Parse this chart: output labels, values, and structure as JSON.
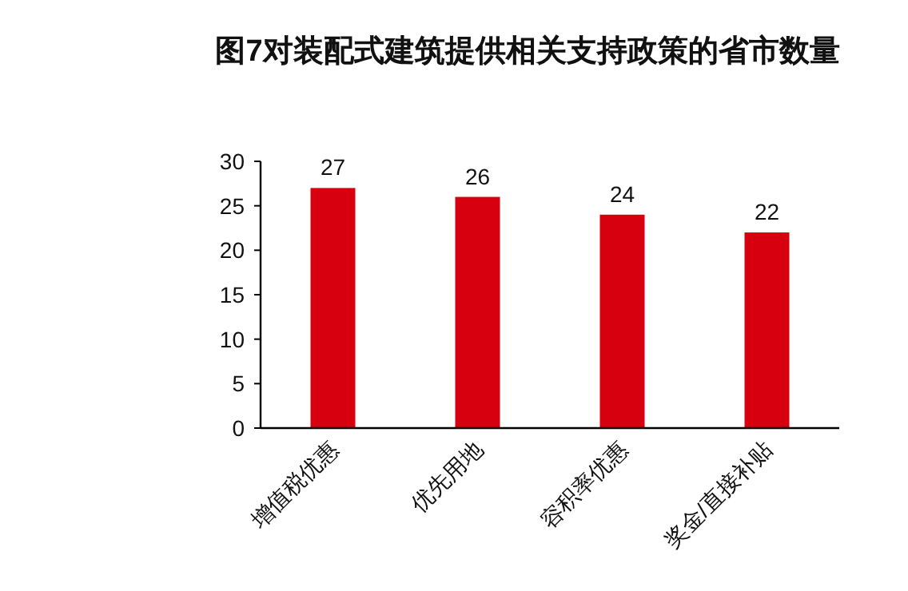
{
  "chart_data": {
    "type": "bar",
    "title": "图7对装配式建筑提供相关支持政策的省市数量",
    "categories": [
      "增值税优惠",
      "优先用地",
      "容积率优惠",
      "奖金/直接补贴"
    ],
    "values": [
      27,
      26,
      24,
      22
    ],
    "color": "#d7000f",
    "ylim": [
      0,
      30
    ],
    "yticks": [
      0,
      5,
      10,
      15,
      20,
      25,
      30
    ],
    "data_labels": true
  }
}
